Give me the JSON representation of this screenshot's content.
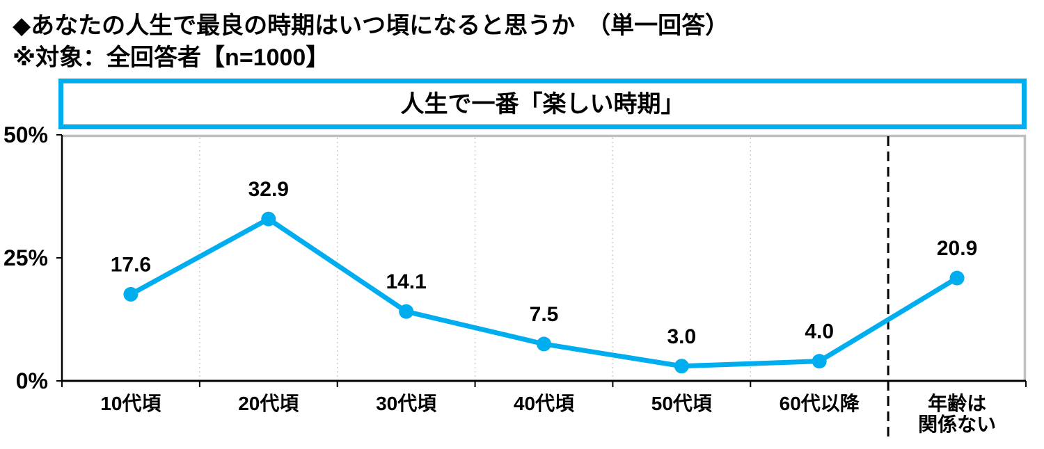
{
  "header": {
    "line1": "◆あなたの人生で最良の時期はいつ頃になると思うか　（単一回答）",
    "line2": "※対象：全回答者【n=1000】"
  },
  "colors": {
    "accent": "#00AEEF",
    "plot_border": "#BFBFBF",
    "gridline": "#C9C9C9",
    "axis": "#000000",
    "separator": "#000000",
    "text": "#000000",
    "background": "#FFFFFF"
  },
  "chart_data": {
    "type": "line",
    "title": "人生で一番「楽しい時期」",
    "categories": [
      "10代頃",
      "20代頃",
      "30代頃",
      "40代頃",
      "50代頃",
      "60代以降",
      "年齢は\n関係ない"
    ],
    "values": [
      17.6,
      32.9,
      14.1,
      7.5,
      3.0,
      4.0,
      20.9
    ],
    "value_labels": [
      "17.6",
      "32.9",
      "14.1",
      "7.5",
      "3.0",
      "4.0",
      "20.9"
    ],
    "unit": "%",
    "ylim": [
      0,
      50
    ],
    "y_ticks": [
      {
        "value": 0,
        "label": "0%"
      },
      {
        "value": 25,
        "label": "25%"
      },
      {
        "value": 50,
        "label": "50%"
      }
    ],
    "grid": "vertical-dotted",
    "legend": "none",
    "separator_before_category_index": 6
  }
}
